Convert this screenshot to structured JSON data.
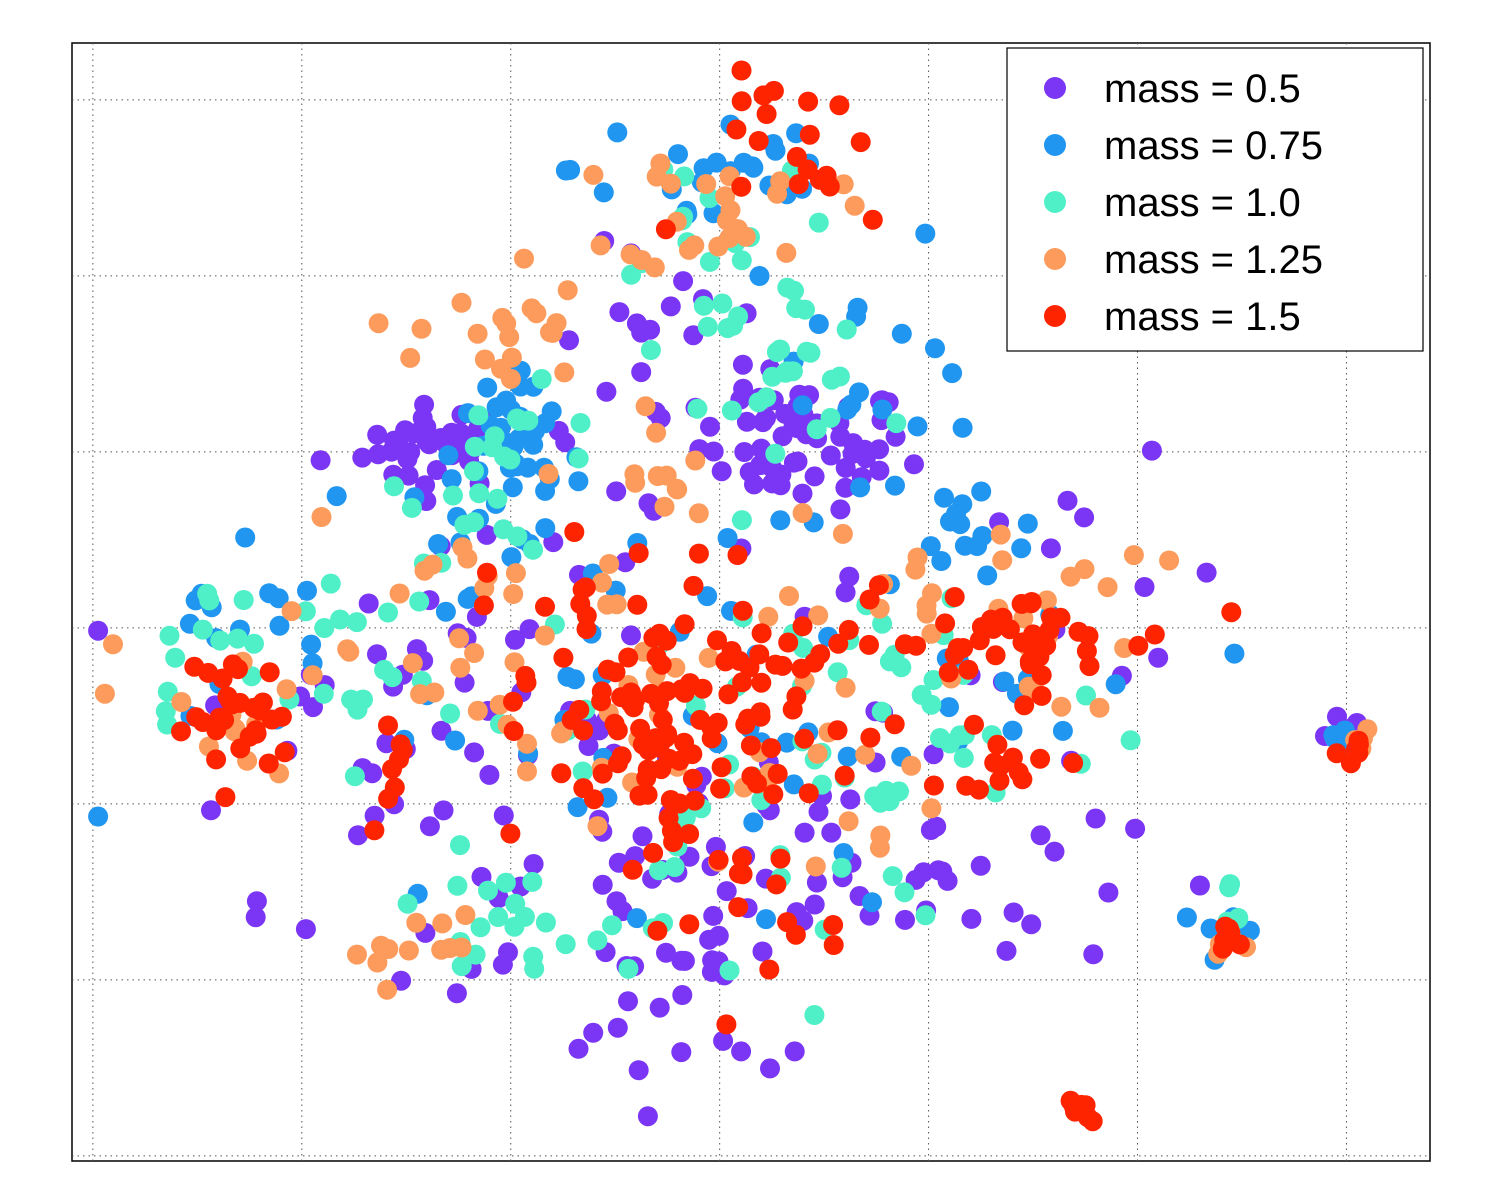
{
  "chart_data": {
    "type": "scatter",
    "title": "",
    "xlabel": "",
    "ylabel": "",
    "xlim": [
      0,
      13
    ],
    "ylim": [
      0,
      10.8
    ],
    "grid": true,
    "legend_position": "top-right",
    "series": [
      {
        "name": "mass = 0.5",
        "color": "#7b35f5",
        "clusters": [
          {
            "cx": 3.5,
            "cy": 6.9,
            "sx": 0.35,
            "sy": 0.2,
            "n": 35
          },
          {
            "cx": 7.0,
            "cy": 6.9,
            "sx": 0.5,
            "sy": 0.3,
            "n": 55
          },
          {
            "cx": 5.8,
            "cy": 7.8,
            "sx": 0.6,
            "sy": 0.5,
            "n": 20
          },
          {
            "cx": 5.5,
            "cy": 3.0,
            "sx": 1.5,
            "sy": 0.9,
            "n": 60
          },
          {
            "cx": 3.0,
            "cy": 4.2,
            "sx": 1.2,
            "sy": 0.8,
            "n": 30
          },
          {
            "cx": 8.3,
            "cy": 2.8,
            "sx": 0.9,
            "sy": 0.5,
            "n": 25
          },
          {
            "cx": 6.0,
            "cy": 1.5,
            "sx": 0.8,
            "sy": 0.5,
            "n": 20
          },
          {
            "cx": 12.1,
            "cy": 4.2,
            "sx": 0.12,
            "sy": 0.1,
            "n": 6
          },
          {
            "cx": 9.8,
            "cy": 5.0,
            "sx": 0.6,
            "sy": 0.8,
            "n": 15
          },
          {
            "cx": 5.0,
            "cy": 5.5,
            "sx": 1.5,
            "sy": 1.0,
            "n": 30
          }
        ]
      },
      {
        "name": "mass = 0.75",
        "color": "#2196f0",
        "clusters": [
          {
            "cx": 4.2,
            "cy": 6.7,
            "sx": 0.35,
            "sy": 0.4,
            "n": 40
          },
          {
            "cx": 6.2,
            "cy": 9.6,
            "sx": 0.7,
            "sy": 0.4,
            "n": 25
          },
          {
            "cx": 8.7,
            "cy": 6.1,
            "sx": 0.4,
            "sy": 0.3,
            "n": 15
          },
          {
            "cx": 5.0,
            "cy": 4.5,
            "sx": 1.8,
            "sy": 1.3,
            "n": 50
          },
          {
            "cx": 1.5,
            "cy": 4.8,
            "sx": 0.5,
            "sy": 0.5,
            "n": 15
          },
          {
            "cx": 9.2,
            "cy": 4.5,
            "sx": 0.8,
            "sy": 0.6,
            "n": 15
          },
          {
            "cx": 12.2,
            "cy": 4.1,
            "sx": 0.12,
            "sy": 0.1,
            "n": 5
          },
          {
            "cx": 11.1,
            "cy": 2.2,
            "sx": 0.15,
            "sy": 0.15,
            "n": 5
          },
          {
            "cx": 7.5,
            "cy": 8.0,
            "sx": 0.6,
            "sy": 0.5,
            "n": 15
          }
        ]
      },
      {
        "name": "mass = 1.0",
        "color": "#4ff0c8",
        "clusters": [
          {
            "cx": 4.2,
            "cy": 6.6,
            "sx": 0.5,
            "sy": 0.4,
            "n": 25
          },
          {
            "cx": 6.7,
            "cy": 7.8,
            "sx": 0.5,
            "sy": 0.4,
            "n": 30
          },
          {
            "cx": 6.5,
            "cy": 3.2,
            "sx": 1.0,
            "sy": 0.8,
            "n": 35
          },
          {
            "cx": 4.0,
            "cy": 2.2,
            "sx": 0.8,
            "sy": 0.3,
            "n": 20
          },
          {
            "cx": 3.0,
            "cy": 4.5,
            "sx": 1.0,
            "sy": 0.8,
            "n": 25
          },
          {
            "cx": 8.0,
            "cy": 4.5,
            "sx": 1.0,
            "sy": 0.7,
            "n": 30
          },
          {
            "cx": 6.2,
            "cy": 9.2,
            "sx": 0.6,
            "sy": 0.4,
            "n": 15
          },
          {
            "cx": 1.5,
            "cy": 5.0,
            "sx": 0.5,
            "sy": 0.4,
            "n": 10
          },
          {
            "cx": 11.1,
            "cy": 2.3,
            "sx": 0.15,
            "sy": 0.2,
            "n": 5
          }
        ]
      },
      {
        "name": "mass = 1.25",
        "color": "#fc9b5c",
        "clusters": [
          {
            "cx": 4.1,
            "cy": 8.0,
            "sx": 0.4,
            "sy": 0.4,
            "n": 20
          },
          {
            "cx": 6.3,
            "cy": 9.2,
            "sx": 0.5,
            "sy": 0.3,
            "n": 25
          },
          {
            "cx": 5.6,
            "cy": 6.9,
            "sx": 0.2,
            "sy": 0.3,
            "n": 10
          },
          {
            "cx": 3.6,
            "cy": 5.0,
            "sx": 1.5,
            "sy": 0.7,
            "n": 40
          },
          {
            "cx": 8.5,
            "cy": 5.3,
            "sx": 0.9,
            "sy": 0.5,
            "n": 30
          },
          {
            "cx": 6.3,
            "cy": 3.8,
            "sx": 1.0,
            "sy": 0.6,
            "n": 25
          },
          {
            "cx": 3.2,
            "cy": 2.1,
            "sx": 0.4,
            "sy": 0.2,
            "n": 12
          },
          {
            "cx": 1.4,
            "cy": 4.3,
            "sx": 0.5,
            "sy": 0.5,
            "n": 12
          },
          {
            "cx": 12.3,
            "cy": 4.0,
            "sx": 0.12,
            "sy": 0.08,
            "n": 4
          },
          {
            "cx": 11.1,
            "cy": 2.0,
            "sx": 0.1,
            "sy": 0.1,
            "n": 4
          }
        ]
      },
      {
        "name": "mass = 1.5",
        "color": "#ff2400",
        "clusters": [
          {
            "cx": 5.8,
            "cy": 4.1,
            "sx": 0.7,
            "sy": 0.4,
            "n": 60
          },
          {
            "cx": 6.8,
            "cy": 4.6,
            "sx": 0.5,
            "sy": 0.4,
            "n": 25
          },
          {
            "cx": 5.3,
            "cy": 5.2,
            "sx": 0.7,
            "sy": 0.4,
            "n": 30
          },
          {
            "cx": 9.0,
            "cy": 5.0,
            "sx": 0.8,
            "sy": 0.25,
            "n": 45
          },
          {
            "cx": 1.6,
            "cy": 4.3,
            "sx": 0.25,
            "sy": 0.3,
            "n": 30
          },
          {
            "cx": 3.1,
            "cy": 3.9,
            "sx": 0.15,
            "sy": 0.25,
            "n": 8
          },
          {
            "cx": 7.1,
            "cy": 9.7,
            "sx": 0.5,
            "sy": 0.4,
            "n": 20
          },
          {
            "cx": 5.7,
            "cy": 3.1,
            "sx": 0.4,
            "sy": 0.4,
            "n": 20
          },
          {
            "cx": 9.0,
            "cy": 3.8,
            "sx": 0.35,
            "sy": 0.1,
            "n": 12
          },
          {
            "cx": 12.2,
            "cy": 3.95,
            "sx": 0.1,
            "sy": 0.07,
            "n": 6
          },
          {
            "cx": 11.1,
            "cy": 2.15,
            "sx": 0.1,
            "sy": 0.06,
            "n": 6
          },
          {
            "cx": 9.7,
            "cy": 0.5,
            "sx": 0.08,
            "sy": 0.07,
            "n": 8
          },
          {
            "cx": 6.9,
            "cy": 2.2,
            "sx": 0.5,
            "sy": 0.3,
            "n": 8
          }
        ]
      }
    ]
  }
}
